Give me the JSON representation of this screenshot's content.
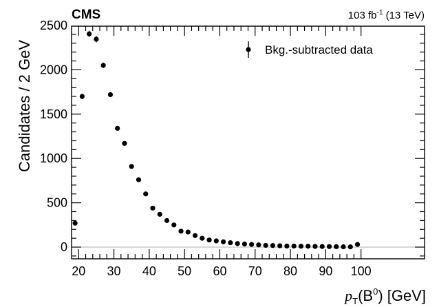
{
  "header": {
    "experiment": "CMS",
    "lumi_value": "103 fb",
    "lumi_exp": "-1",
    "lumi_energy": " (13 TeV)"
  },
  "legend": {
    "label": "Bkg.-subtracted data"
  },
  "chart_data": {
    "type": "scatter",
    "title": "",
    "xlabel": "p_T(B^0) [GeV]",
    "xlabel_parts": {
      "var": "p",
      "sub": "T",
      "open": "(B",
      "sup": "0",
      "close": ") [GeV]"
    },
    "ylabel": "Candidates / 2 GeV",
    "xlim": [
      18,
      100
    ],
    "ylim": [
      -100,
      2500
    ],
    "xticks": [
      20,
      30,
      40,
      50,
      60,
      70,
      80,
      90,
      100
    ],
    "yticks": [
      0,
      500,
      1000,
      1500,
      2000,
      2500
    ],
    "grid": false,
    "legend_position": "top-right",
    "series": [
      {
        "name": "Bkg.-subtracted data",
        "color": "#000000",
        "x": [
          19,
          21,
          23,
          25,
          27,
          29,
          31,
          33,
          35,
          37,
          39,
          41,
          43,
          45,
          47,
          49,
          51,
          53,
          55,
          57,
          59,
          61,
          63,
          65,
          67,
          69,
          71,
          73,
          75,
          77,
          79,
          81,
          83,
          85,
          87,
          89,
          91,
          93,
          95,
          97,
          99
        ],
        "y": [
          270,
          1700,
          2405,
          2345,
          2050,
          1720,
          1340,
          1170,
          910,
          760,
          600,
          440,
          370,
          300,
          250,
          180,
          170,
          130,
          100,
          80,
          70,
          60,
          50,
          40,
          35,
          30,
          25,
          20,
          18,
          15,
          12,
          12,
          10,
          10,
          8,
          7,
          6,
          5,
          4,
          3,
          30
        ],
        "yerr": [
          20,
          30,
          35,
          35,
          30,
          25,
          22,
          20,
          18,
          16,
          14,
          12,
          11,
          10,
          9,
          8,
          8,
          7,
          7,
          6,
          6,
          6,
          5,
          5,
          5,
          5,
          5,
          5,
          5,
          5,
          5,
          5,
          5,
          5,
          5,
          5,
          5,
          5,
          5,
          5,
          5
        ]
      }
    ]
  }
}
